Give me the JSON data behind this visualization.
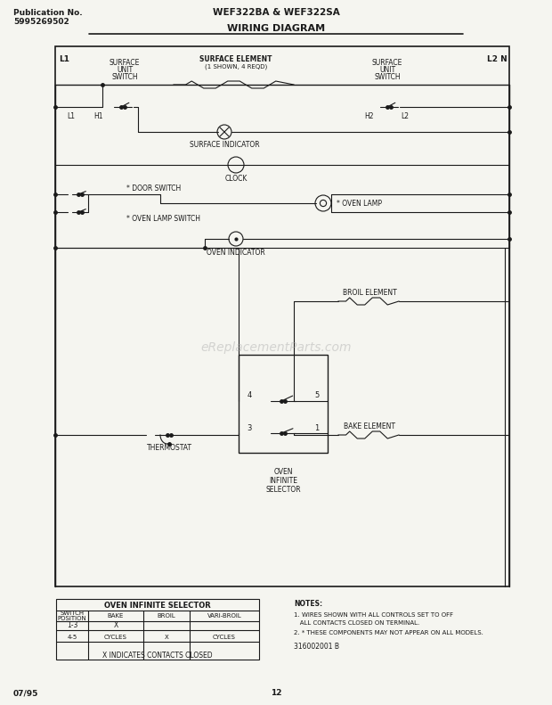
{
  "title_pub": "Publication No.",
  "title_pub_num": "5995269502",
  "title_model": "WEF322BA & WEF322SA",
  "title_diagram": "WIRING DIAGRAM",
  "watermark": "eReplacementParts.com",
  "page_num": "12",
  "date": "07/95",
  "doc_num": "316002001 B",
  "bg_color": "#f5f5f0",
  "line_color": "#1a1a1a",
  "notes_line1": "1. WIRES SHOWN WITH ALL CONTROLS SET TO OFF",
  "notes_line2": "   ALL CONTACTS CLOSED ON TERMINAL.",
  "notes_line3": "2. * THESE COMPONENTS MAY NOT APPEAR ON ALL MODELS.",
  "table_title": "OVEN INFINITE SELECTOR",
  "table_headers": [
    "SWITCH\nPOSITION",
    "BAKE",
    "BROIL",
    "VARI-BROIL"
  ],
  "col1_label": "SWITCH\nPOSITION",
  "col2_label": "BAKE",
  "col3_label": "BROIL",
  "col4_label": "VARI-BROIL",
  "row1": [
    "1-3",
    "X",
    "",
    ""
  ],
  "row2": [
    "4-5",
    "CYCLES",
    "X",
    "CYCLES"
  ],
  "row3": "X INDICATES CONTACTS CLOSED"
}
